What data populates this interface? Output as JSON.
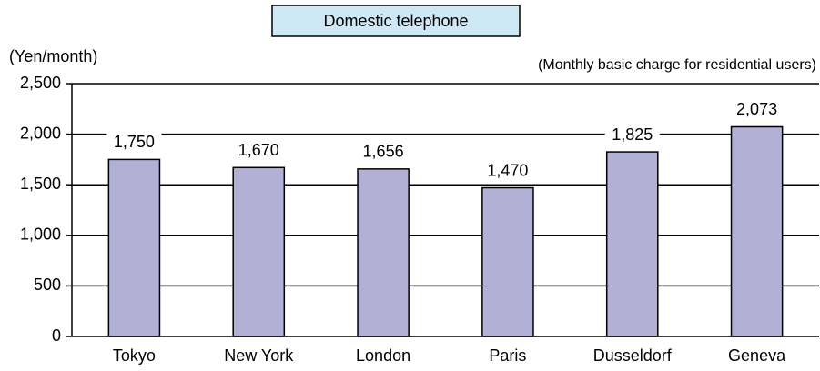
{
  "chart_data": {
    "type": "bar",
    "title": "Domestic telephone",
    "subtitle": "(Monthly basic charge for residential users)",
    "y_label": "(Yen/month)",
    "categories": [
      "Tokyo",
      "New York",
      "London",
      "Paris",
      "Dusseldorf",
      "Geneva"
    ],
    "values": [
      1750,
      1670,
      1656,
      1470,
      1825,
      2073
    ],
    "value_labels": [
      "1,750",
      "1,670",
      "1,656",
      "1,470",
      "1,825",
      "2,073"
    ],
    "color": "#b3b0d6",
    "ylim": [
      0,
      2500
    ],
    "yticks": [
      0,
      500,
      {
        "value": 1000,
        "label": "1,000"
      },
      {
        "value": 1500,
        "label": "1,500"
      },
      {
        "value": 2000,
        "label": "2,000"
      },
      {
        "value": 2500,
        "label": "2,500"
      }
    ],
    "grid": true
  }
}
